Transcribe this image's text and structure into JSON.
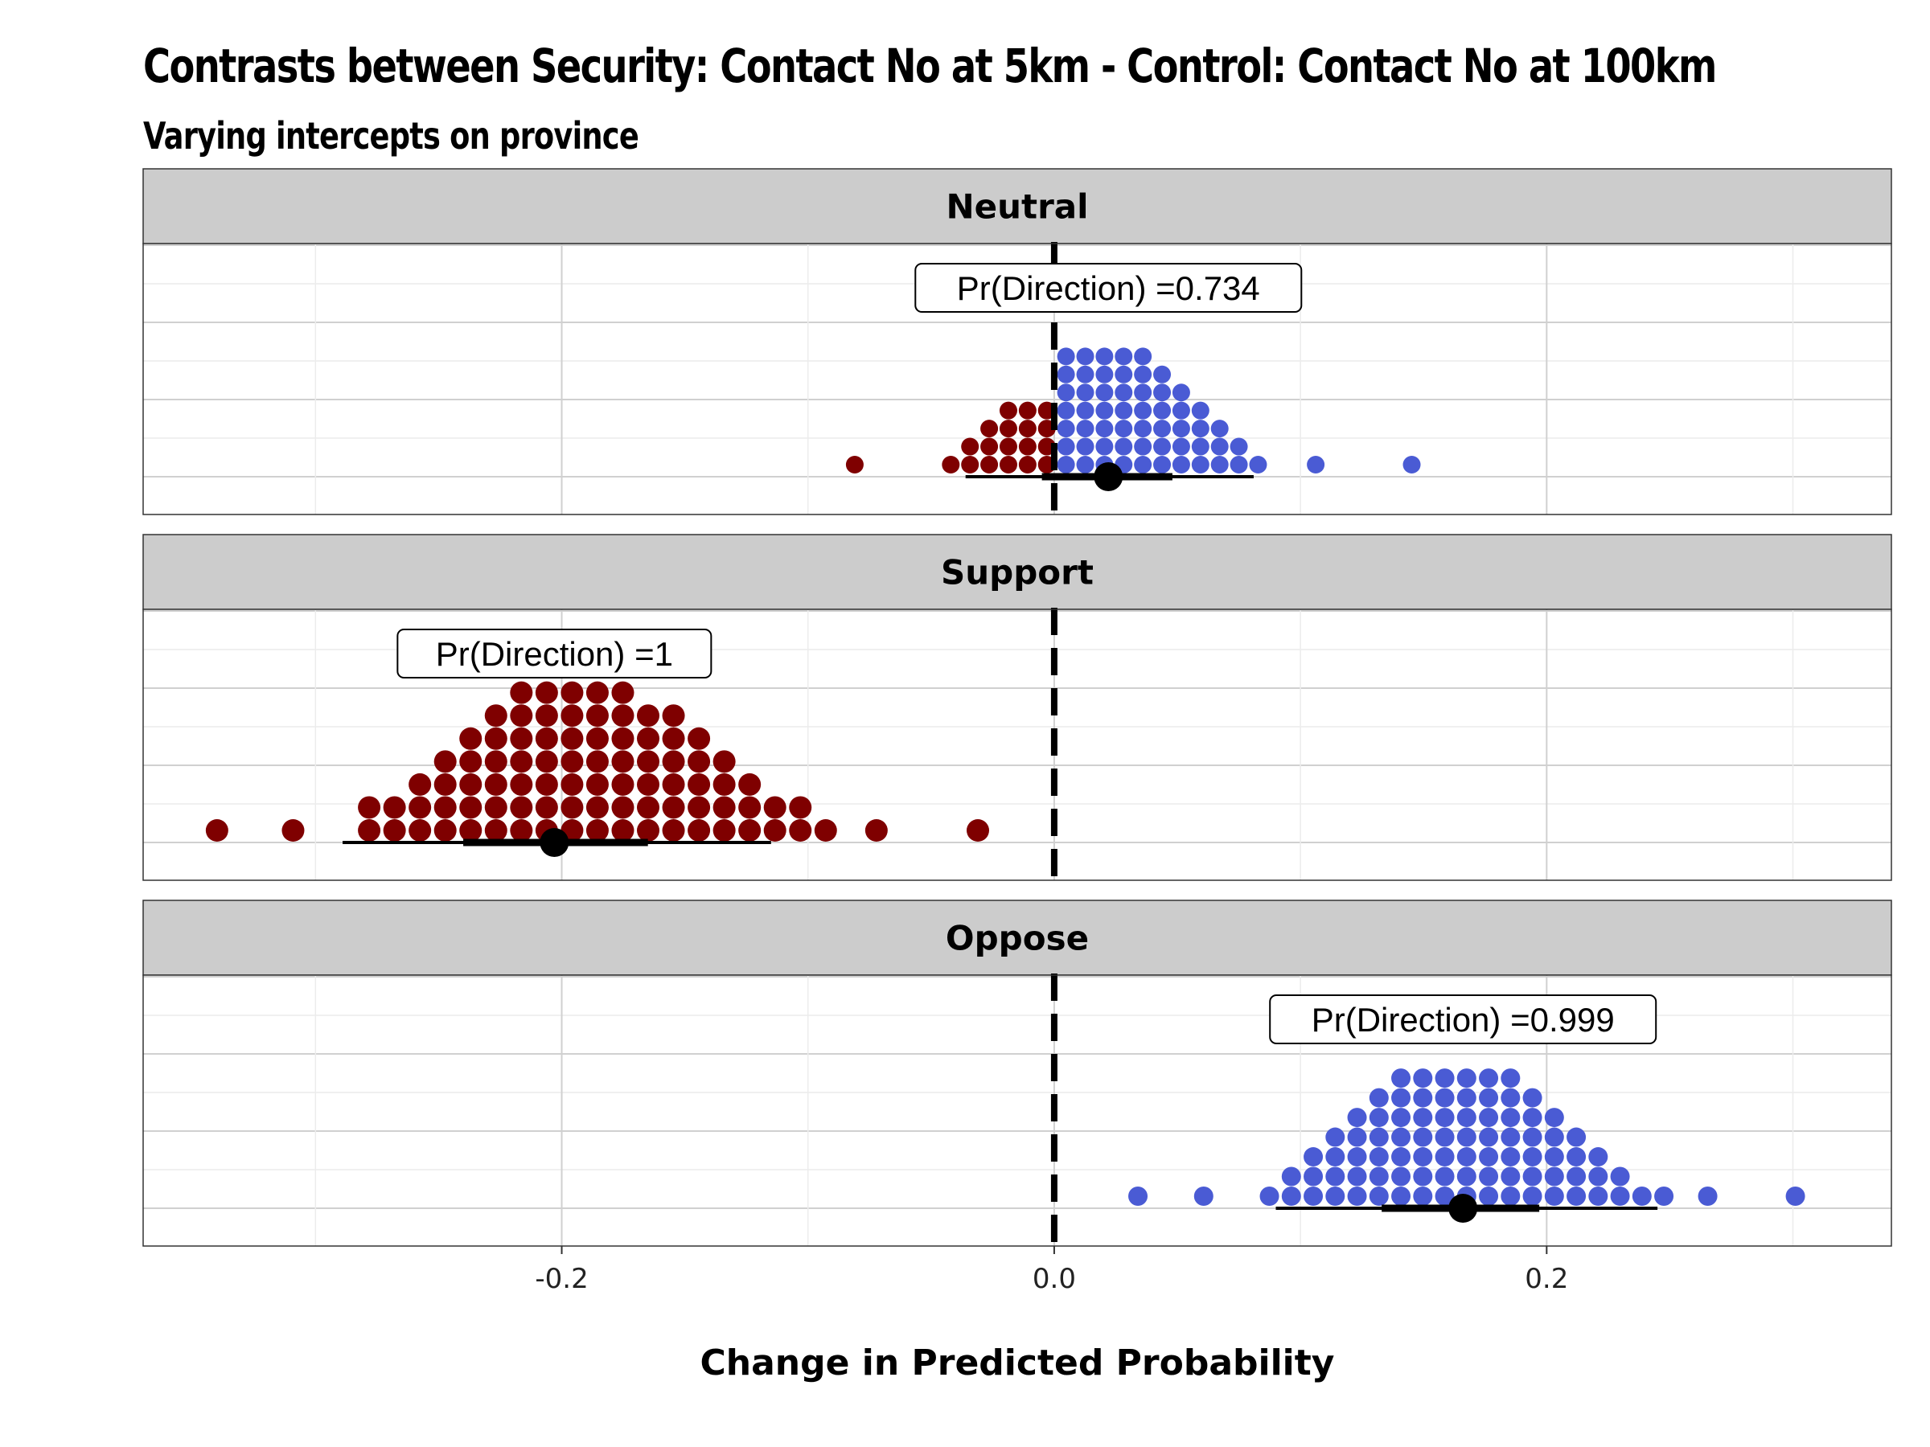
{
  "title": "Contrasts between Security: Contact No at 5km - Control: Contact No at 100km",
  "subtitle": "Varying intercepts on province",
  "chart_data": {
    "type": "dotplot",
    "xlabel": "Change in Predicted Probability",
    "xlim": [
      -0.37,
      0.34
    ],
    "x_ticks": [
      -0.2,
      0.0,
      0.2
    ],
    "x_tick_labels": [
      "-0.2",
      "0.0",
      "0.2"
    ],
    "reference_line_x": 0,
    "grid": true,
    "colors": {
      "negative": "#7f0000",
      "positive": "#4a5bd4",
      "strip": "#cccccc"
    },
    "panels": [
      {
        "name": "Neutral",
        "label": "Pr(Direction) =0.734",
        "label_x": 0.022,
        "point_estimate": 0.022,
        "interval_inner": [
          -0.005,
          0.048
        ],
        "interval_outer": [
          -0.036,
          0.081
        ],
        "dot_radius": 11,
        "dot_counts": {
          "x_start": -0.081,
          "x_step": 0.0078,
          "counts": [
            1,
            0,
            0,
            0,
            0,
            1,
            2,
            3,
            4,
            4,
            4,
            7,
            7,
            7,
            7,
            7,
            6,
            5,
            4,
            3,
            2,
            1,
            0,
            0,
            1,
            0,
            0,
            0,
            0,
            1
          ]
        }
      },
      {
        "name": "Support",
        "label": "Pr(Direction) =1",
        "label_x": -0.203,
        "point_estimate": -0.203,
        "interval_inner": [
          -0.24,
          -0.165
        ],
        "interval_outer": [
          -0.289,
          -0.115
        ],
        "dot_radius": 14,
        "dot_counts": {
          "x_start": -0.34,
          "x_step": 0.0103,
          "counts": [
            1,
            0,
            0,
            1,
            0,
            0,
            2,
            2,
            3,
            4,
            5,
            6,
            7,
            7,
            7,
            7,
            7,
            6,
            6,
            5,
            4,
            3,
            2,
            2,
            1,
            0,
            1,
            0,
            0,
            0,
            1
          ]
        }
      },
      {
        "name": "Oppose",
        "label": "Pr(Direction) =0.999",
        "label_x": 0.166,
        "point_estimate": 0.166,
        "interval_inner": [
          0.133,
          0.197
        ],
        "interval_outer": [
          0.09,
          0.245
        ],
        "dot_radius": 12,
        "dot_counts": {
          "x_start": 0.034,
          "x_step": 0.0089,
          "counts": [
            1,
            0,
            0,
            1,
            0,
            0,
            1,
            2,
            3,
            4,
            5,
            6,
            7,
            7,
            7,
            7,
            7,
            7,
            6,
            5,
            4,
            3,
            2,
            1,
            1,
            0,
            1,
            0,
            0,
            0,
            1
          ]
        }
      }
    ]
  }
}
